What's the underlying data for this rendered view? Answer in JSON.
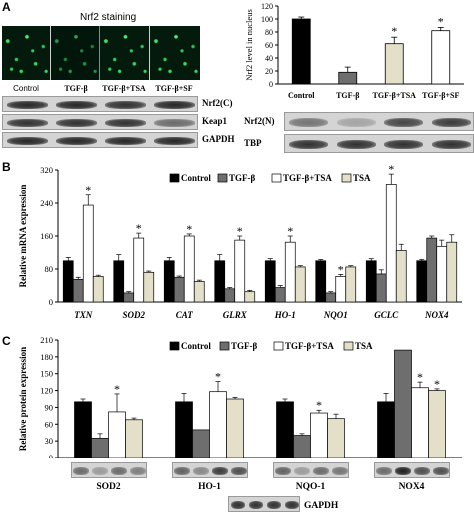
{
  "panel_a": {
    "letter": "A",
    "staining_title": "Nrf2 staining",
    "lanes": [
      "Control",
      "TGF-β",
      "TGF-β+TSA",
      "TGF-β+SF"
    ],
    "left_blots": [
      {
        "label": "Nrf2(C)",
        "intensity": [
          0.9,
          0.9,
          0.85,
          0.9
        ]
      },
      {
        "label": "Keap1",
        "intensity": [
          0.85,
          0.85,
          0.85,
          0.55
        ]
      },
      {
        "label": "GAPDH",
        "intensity": [
          0.9,
          0.9,
          0.9,
          0.9
        ]
      }
    ],
    "right_blots": [
      {
        "label": "Nrf2(N)",
        "intensity": [
          0.5,
          0.25,
          0.75,
          0.8
        ]
      },
      {
        "label": "TBP",
        "intensity": [
          0.85,
          0.85,
          0.85,
          0.85
        ]
      }
    ]
  },
  "panel_b": {
    "letter": "B"
  },
  "panel_c": {
    "letter": "C",
    "blots": [
      {
        "label": "SOD2",
        "intensity": [
          0.55,
          0.3,
          0.55,
          0.45
        ]
      },
      {
        "label": "HO-1",
        "intensity": [
          0.6,
          0.4,
          0.8,
          0.7
        ]
      },
      {
        "label": "NQO-1",
        "intensity": [
          0.6,
          0.3,
          0.55,
          0.5
        ]
      },
      {
        "label": "NOX4",
        "intensity": [
          0.55,
          0.95,
          0.7,
          0.7
        ]
      }
    ],
    "gapdh_label": "GAPDH"
  },
  "colors": {
    "control": "#000000",
    "tgf": "#6e6e6e",
    "tgf_tsa": "#ffffff",
    "tsa": "#e3dfc8"
  },
  "chart_data": [
    {
      "type": "bar",
      "ylabel": "Nrf2 level in nucleus",
      "ylim": [
        0,
        120
      ],
      "yticks": [
        0,
        20,
        40,
        60,
        80,
        100,
        120
      ],
      "categories": [
        "Control",
        "TGF-β",
        "TGF-β+TSA",
        "TGF-β+SF"
      ],
      "values": [
        100,
        18,
        62,
        82
      ],
      "errors": [
        3,
        8,
        10,
        5
      ],
      "bar_colors": [
        "#000000",
        "#6e6e6e",
        "#e3dfc8",
        "#ffffff"
      ],
      "stars": [
        false,
        false,
        true,
        true
      ]
    },
    {
      "type": "bar",
      "ylabel": "Relative mRNA expression",
      "ylim": [
        0,
        320
      ],
      "yticks": [
        0,
        80,
        160,
        240,
        320
      ],
      "categories": [
        "TXN",
        "SOD2",
        "CAT",
        "GLRX",
        "HO-1",
        "NQO1",
        "GCLC",
        "NOX4"
      ],
      "series": [
        {
          "name": "Control",
          "values": [
            100,
            100,
            100,
            100,
            100,
            100,
            100,
            100
          ],
          "errors": [
            8,
            15,
            8,
            15,
            5,
            3,
            5,
            3
          ]
        },
        {
          "name": "TGF-β",
          "values": [
            55,
            22,
            60,
            32,
            35,
            22,
            68,
            155
          ],
          "errors": [
            5,
            3,
            3,
            3,
            5,
            3,
            10,
            5
          ]
        },
        {
          "name": "TGF-β+TSA",
          "values": [
            235,
            155,
            160,
            150,
            145,
            62,
            285,
            135
          ],
          "errors": [
            25,
            12,
            5,
            10,
            15,
            5,
            25,
            15
          ]
        },
        {
          "name": "TSA",
          "values": [
            62,
            72,
            50,
            25,
            85,
            85,
            125,
            145
          ],
          "errors": [
            3,
            3,
            3,
            3,
            3,
            3,
            15,
            18
          ]
        }
      ],
      "stars": [
        [
          false,
          false,
          true,
          false
        ],
        [
          false,
          false,
          true,
          false
        ],
        [
          false,
          false,
          true,
          false
        ],
        [
          false,
          false,
          true,
          false
        ],
        [
          false,
          false,
          true,
          false
        ],
        [
          false,
          false,
          true,
          false
        ],
        [
          false,
          false,
          true,
          false
        ],
        [
          false,
          false,
          false,
          false
        ]
      ],
      "legend_position": "top"
    },
    {
      "type": "bar",
      "ylabel": "Relative protein expression",
      "ylim": [
        0,
        210
      ],
      "yticks": [
        0,
        30,
        60,
        90,
        120,
        150,
        180,
        210
      ],
      "categories": [
        "SOD2",
        "HO-1",
        "NQO-1",
        "NOX4"
      ],
      "series": [
        {
          "name": "Control",
          "values": [
            100,
            100,
            100,
            100
          ],
          "errors": [
            5,
            15,
            5,
            15
          ]
        },
        {
          "name": "TGF-β",
          "values": [
            35,
            50,
            40,
            192
          ],
          "errors": [
            8,
            0,
            3,
            0
          ]
        },
        {
          "name": "TGF-β+TSA",
          "values": [
            82,
            118,
            80,
            125
          ],
          "errors": [
            32,
            18,
            5,
            10
          ]
        },
        {
          "name": "TSA",
          "values": [
            68,
            105,
            70,
            120
          ],
          "errors": [
            3,
            3,
            8,
            3
          ]
        }
      ],
      "stars": [
        [
          false,
          false,
          true,
          false
        ],
        [
          false,
          false,
          true,
          false
        ],
        [
          false,
          false,
          true,
          false
        ],
        [
          false,
          false,
          true,
          true
        ]
      ],
      "legend_position": "top"
    }
  ]
}
